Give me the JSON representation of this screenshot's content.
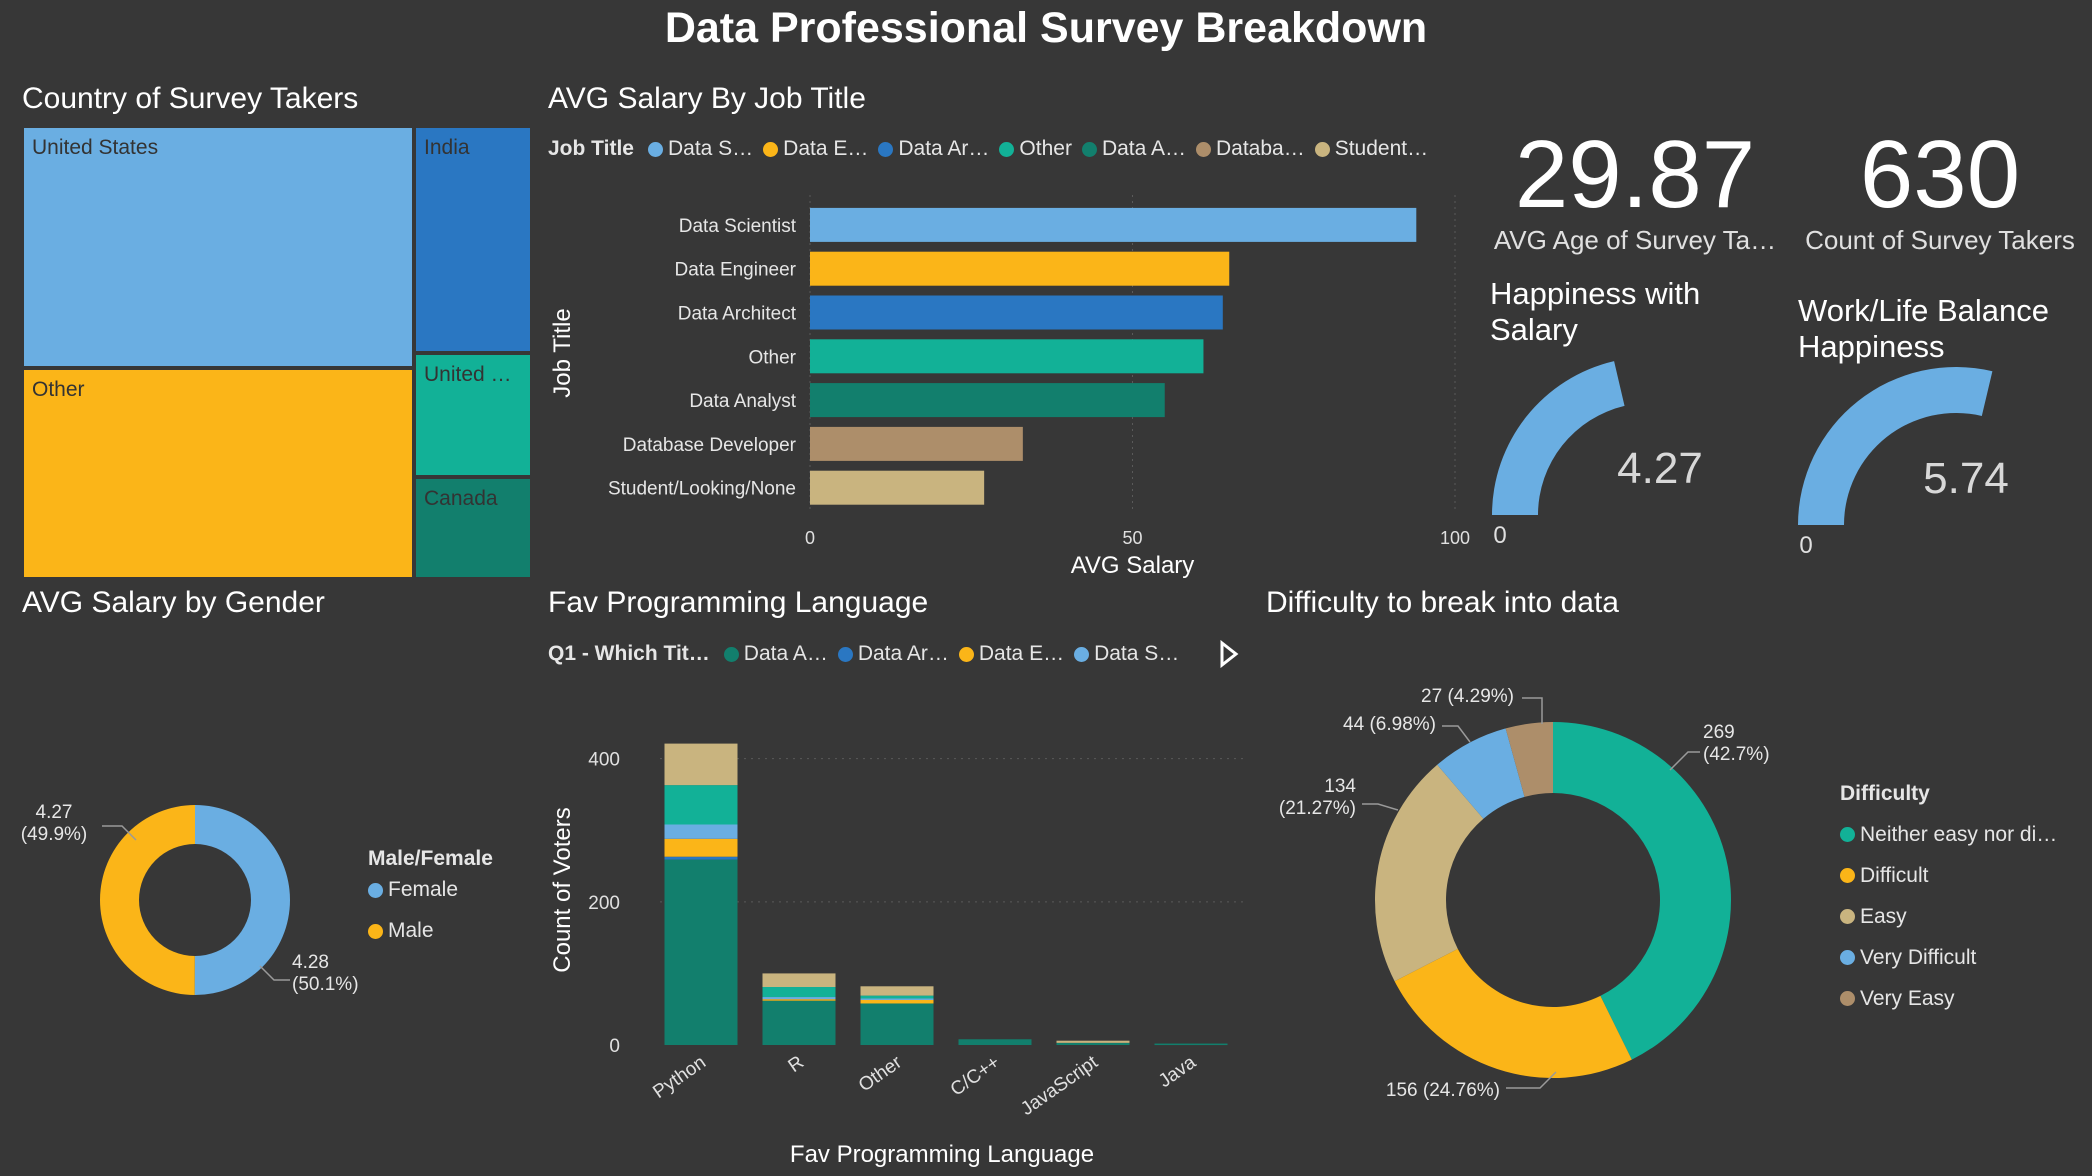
{
  "title": "Data Professional Survey Breakdown",
  "colors": {
    "light_blue": "#6aaee2",
    "yellow": "#fbb518",
    "blue": "#2a77c2",
    "teal": "#12b197",
    "dark_teal": "#127f6d",
    "tan": "#ad8e6a",
    "khaki": "#c9b47f",
    "background": "#373737"
  },
  "country": {
    "title": "Country of Survey Takers",
    "cells": [
      {
        "label": "United States",
        "color": "#6aaee2"
      },
      {
        "label": "Other",
        "color": "#fbb518"
      },
      {
        "label": "India",
        "color": "#2a77c2"
      },
      {
        "label": "United …",
        "color": "#12b197"
      },
      {
        "label": "Canada",
        "color": "#127f6d"
      }
    ]
  },
  "salary_job": {
    "title": "AVG Salary By Job Title",
    "legend_title": "Job Title",
    "legend": [
      {
        "label": "Data S…",
        "color": "#6aaee2"
      },
      {
        "label": "Data E…",
        "color": "#fbb518"
      },
      {
        "label": "Data Ar…",
        "color": "#2a77c2"
      },
      {
        "label": "Other",
        "color": "#12b197"
      },
      {
        "label": "Data A…",
        "color": "#127f6d"
      },
      {
        "label": "Databa…",
        "color": "#ad8e6a"
      },
      {
        "label": "Student…",
        "color": "#c9b47f"
      }
    ]
  },
  "kpis": {
    "age_value": "29.87",
    "age_label": "AVG Age of Survey Ta…",
    "count_value": "630",
    "count_label": "Count of Survey Takers"
  },
  "gauges": [
    {
      "title": "Happiness with Salary",
      "value": 4.27,
      "value_text": "4.27",
      "min_text": "0",
      "max_text": "10",
      "color": "#6aaee2"
    },
    {
      "title": "Work/Life Balance Happiness",
      "value": 5.74,
      "value_text": "5.74",
      "min_text": "0",
      "max_text": "10",
      "color": "#6aaee2"
    }
  ],
  "gender": {
    "title": "AVG Salary by Gender",
    "legend_title": "Male/Female",
    "legend": [
      {
        "label": "Female",
        "color": "#6aaee2"
      },
      {
        "label": "Male",
        "color": "#fbb518"
      }
    ],
    "label_male_value": "4.27",
    "label_male_pct": "(49.9%)",
    "label_female_value": "4.28",
    "label_female_pct": "(50.1%)"
  },
  "lang": {
    "title": "Fav Programming Language",
    "legend_title": "Q1 - Which Tit…",
    "legend": [
      {
        "label": "Data A…",
        "color": "#127f6d"
      },
      {
        "label": "Data Ar…",
        "color": "#2a77c2"
      },
      {
        "label": "Data E…",
        "color": "#fbb518"
      },
      {
        "label": "Data S…",
        "color": "#6aaee2"
      }
    ]
  },
  "difficulty": {
    "title": "Difficulty to break into data",
    "legend_title": "Difficulty",
    "legend": [
      {
        "label": "Neither easy nor di…",
        "color": "#12b197"
      },
      {
        "label": "Difficult",
        "color": "#fbb518"
      },
      {
        "label": "Easy",
        "color": "#c9b47f"
      },
      {
        "label": "Very Difficult",
        "color": "#6aaee2"
      },
      {
        "label": "Very Easy",
        "color": "#ad8e6a"
      }
    ]
  },
  "chart_data": [
    {
      "type": "treemap",
      "title": "Country of Survey Takers",
      "categories": [
        "United States",
        "Other",
        "India",
        "United …",
        "Canada"
      ]
    },
    {
      "type": "bar",
      "orientation": "horizontal",
      "title": "AVG Salary By Job Title",
      "categories": [
        "Data Scientist",
        "Data Engineer",
        "Data Architect",
        "Other",
        "Data Analyst",
        "Database Developer",
        "Student/Looking/None"
      ],
      "values": [
        94,
        65,
        64,
        61,
        55,
        33,
        27
      ],
      "colors": [
        "#6aaee2",
        "#fbb518",
        "#2a77c2",
        "#12b197",
        "#127f6d",
        "#ad8e6a",
        "#c9b47f"
      ],
      "xlabel": "AVG Salary",
      "ylabel": "Job Title",
      "xlim": [
        0,
        100
      ],
      "xticks": [
        0,
        50,
        100
      ],
      "grid": true
    },
    {
      "type": "pie",
      "donut": true,
      "title": "AVG Salary by Gender",
      "categories": [
        "Female",
        "Male"
      ],
      "values": [
        4.28,
        4.27
      ],
      "percent": [
        50.1,
        49.9
      ],
      "colors": [
        "#6aaee2",
        "#fbb518"
      ]
    },
    {
      "type": "bar",
      "stacked": true,
      "title": "Fav Programming Language",
      "categories": [
        "Python",
        "R",
        "Other",
        "C/C++",
        "JavaScript",
        "Java"
      ],
      "series": [
        {
          "name": "Data A…",
          "color": "#127f6d",
          "values": [
            259,
            62,
            58,
            8,
            3,
            2
          ]
        },
        {
          "name": "Data Ar…",
          "color": "#2a77c2",
          "values": [
            4,
            0,
            0,
            0,
            0,
            0
          ]
        },
        {
          "name": "Data E…",
          "color": "#fbb518",
          "values": [
            25,
            2,
            5,
            0,
            0,
            0
          ]
        },
        {
          "name": "Data S…",
          "color": "#6aaee2",
          "values": [
            20,
            3,
            2,
            0,
            0,
            0
          ]
        },
        {
          "name": "Other",
          "color": "#12b197",
          "values": [
            55,
            14,
            4,
            0,
            0,
            0
          ]
        },
        {
          "name": "Student/Looking/None",
          "color": "#c9b47f",
          "values": [
            58,
            19,
            13,
            0,
            3,
            0
          ]
        }
      ],
      "xlabel": "Fav Programming Language",
      "ylabel": "Count of Voters",
      "ylim": [
        0,
        440
      ],
      "yticks": [
        0,
        200,
        400
      ],
      "grid": true
    },
    {
      "type": "pie",
      "donut": true,
      "title": "Difficulty to break into data",
      "categories": [
        "Neither easy nor di…",
        "Difficult",
        "Easy",
        "Very Difficult",
        "Very Easy"
      ],
      "values": [
        269,
        156,
        134,
        44,
        27
      ],
      "percent": [
        42.7,
        24.76,
        21.27,
        6.98,
        4.29
      ],
      "data_labels": [
        "269 (42.7%)",
        "156 (24.76%)",
        "134 (21.27%)",
        "44 (6.98%)",
        "27 (4.29%)"
      ],
      "colors": [
        "#12b197",
        "#fbb518",
        "#c9b47f",
        "#6aaee2",
        "#ad8e6a"
      ]
    }
  ]
}
